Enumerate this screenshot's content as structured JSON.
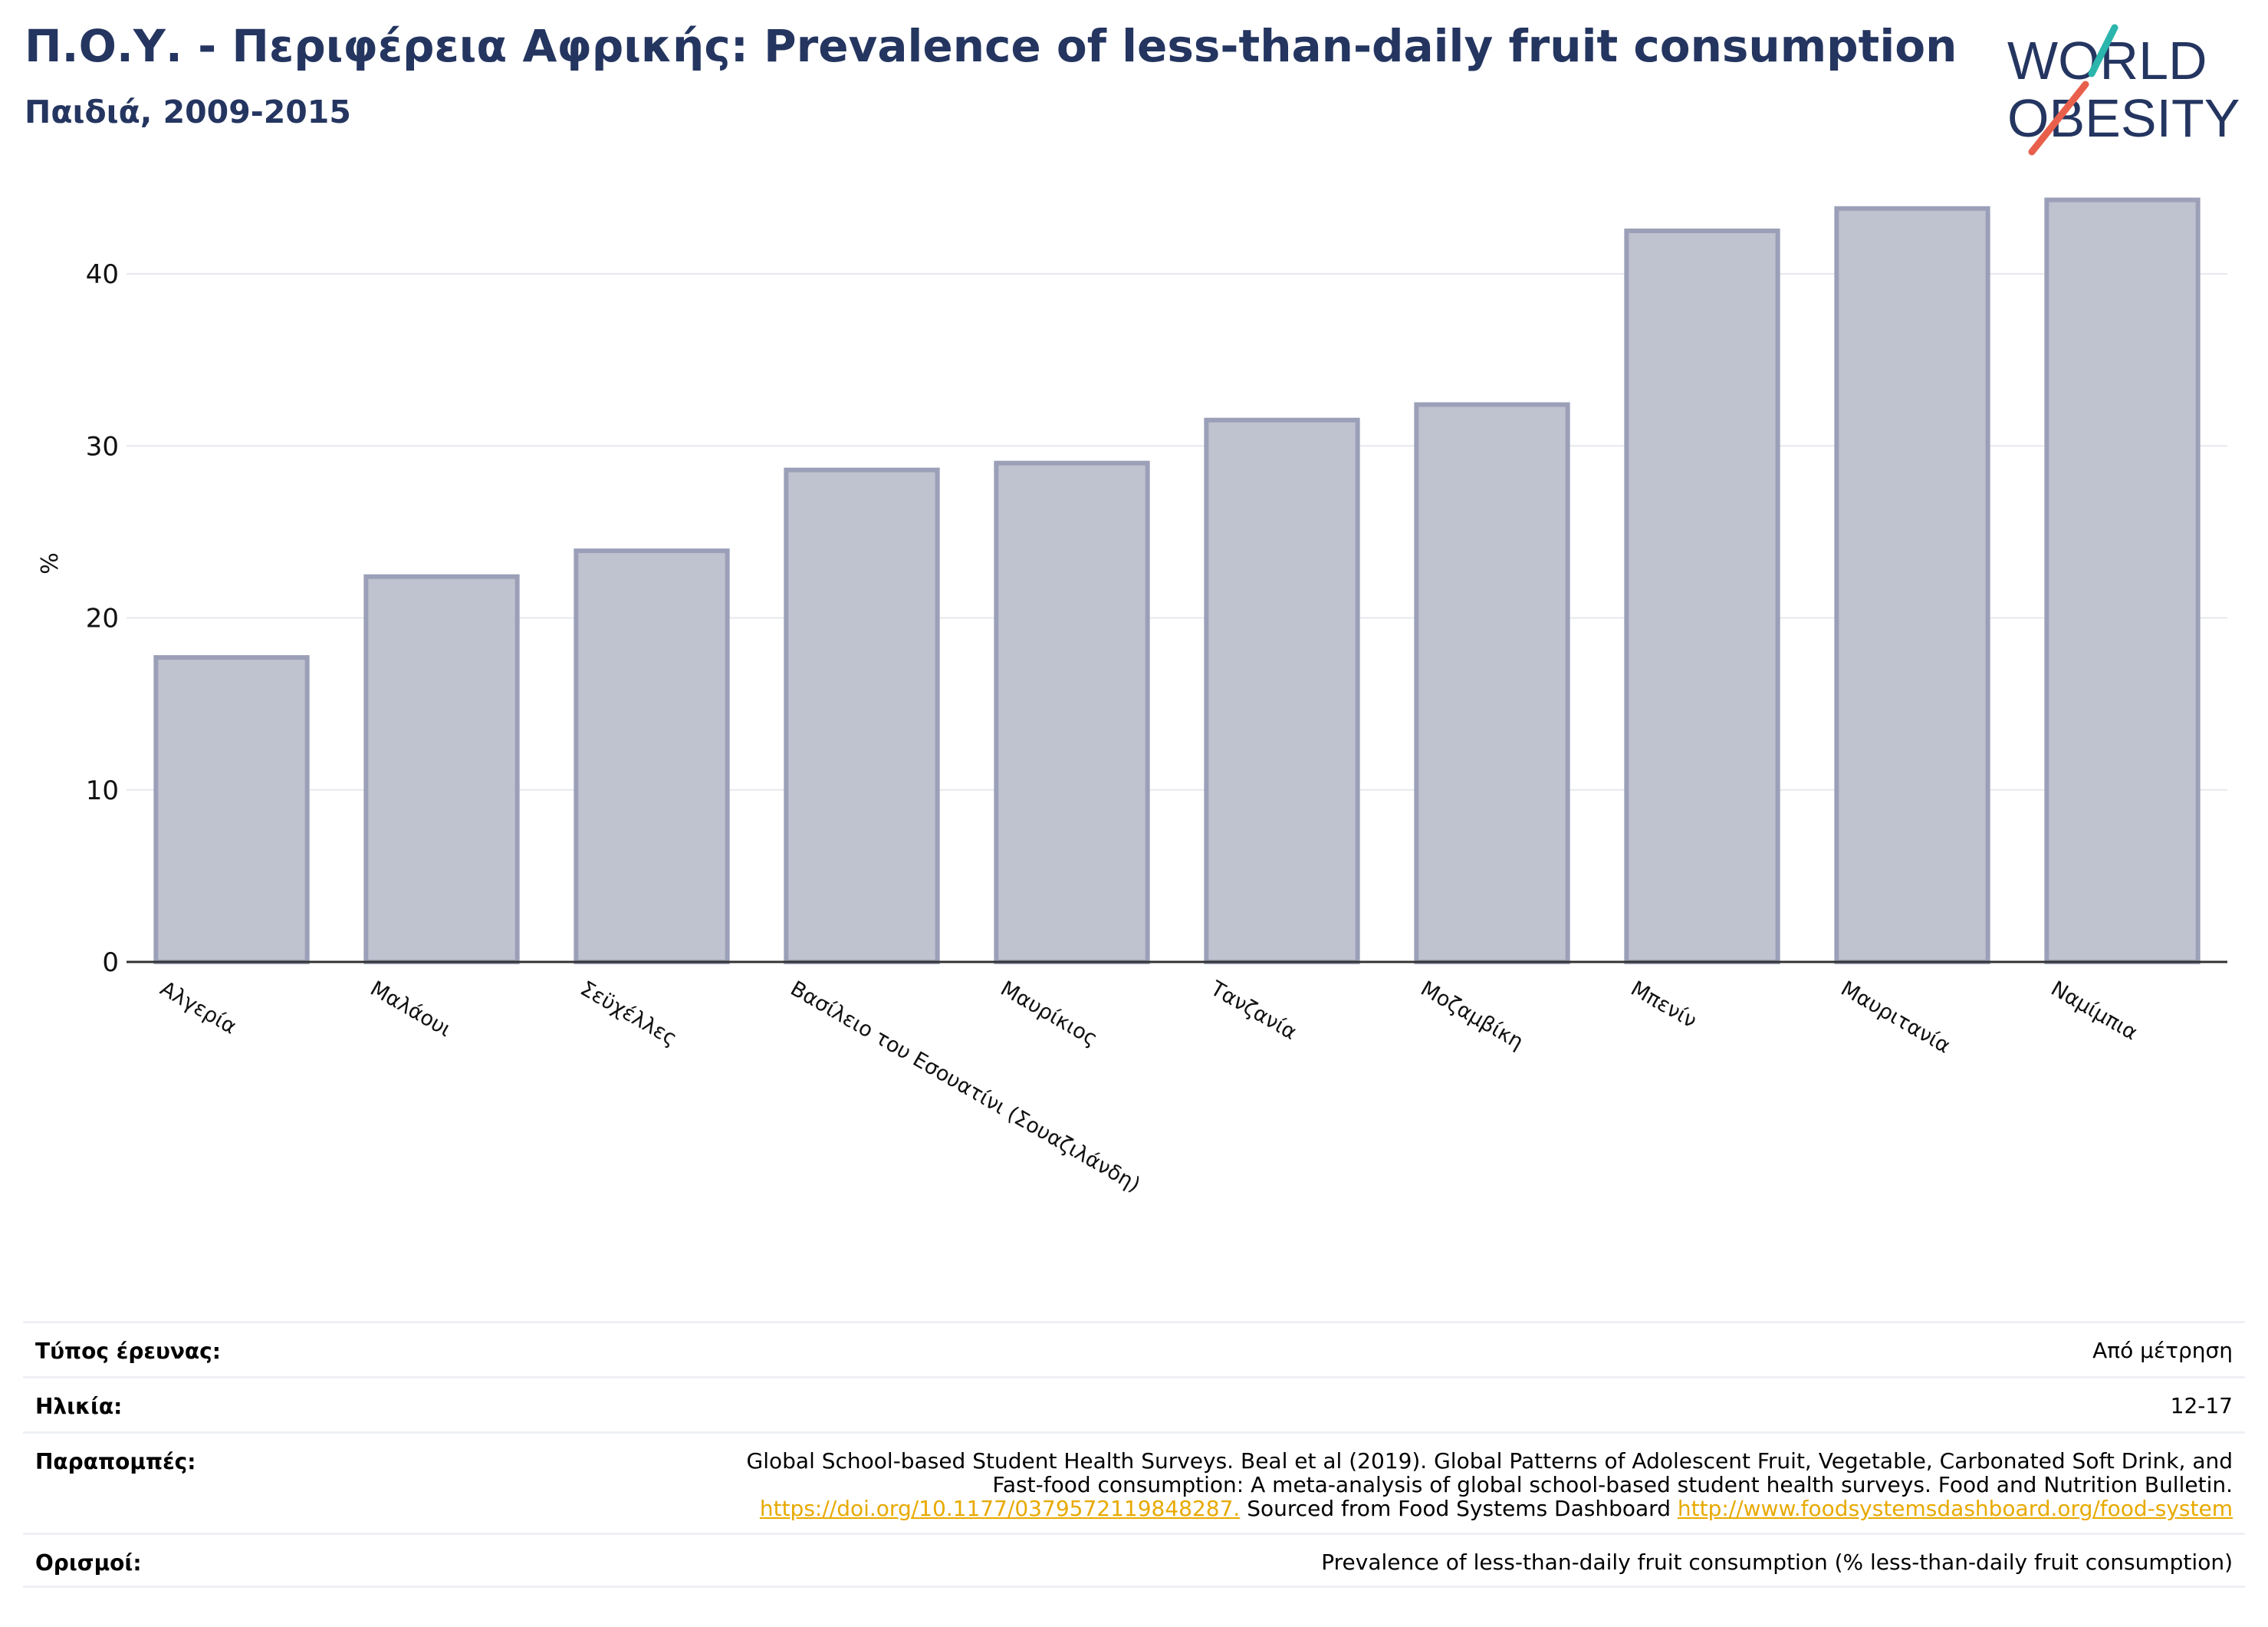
{
  "header": {
    "title": "Π.Ο.Υ. - Περιφέρεια Αφρικής: Prevalence of less-than-daily fruit consumption",
    "subtitle": "Παιδιά, 2009-2015"
  },
  "logo": {
    "line1": "WORLD",
    "line2": "OBESITY"
  },
  "colors": {
    "title": "#243560",
    "bar_fill": "#bfc2cf",
    "bar_stroke": "#9ba0b8",
    "link": "#e8a900",
    "logo_slash_teal": "#2bb5ac",
    "logo_slash_red": "#e8604c"
  },
  "chart_data": {
    "type": "bar",
    "ylabel": "%",
    "ylim": [
      0,
      45
    ],
    "yticks": [
      0,
      10,
      20,
      30,
      40
    ],
    "grid": true,
    "categories": [
      "Αλγερία",
      "Μαλάουι",
      "Σεϋχέλλες",
      "Βασίλειο του Εσουατίνι (Σουαζιλάνδη)",
      "Μαυρίκιος",
      "Τανζανία",
      "Μοζαμβίκη",
      "Μπενίν",
      "Μαυριτανία",
      "Ναμίμπια"
    ],
    "values": [
      17.7,
      22.4,
      23.9,
      28.6,
      29.0,
      31.5,
      32.4,
      42.5,
      43.8,
      44.3
    ]
  },
  "meta": {
    "survey_type": {
      "label": "Τύπος έρευνας:",
      "value": "Από μέτρηση"
    },
    "age": {
      "label": "Ηλικία:",
      "value": "12-17"
    },
    "references": {
      "label": "Παραπομπές:",
      "line1": "Global School-based Student Health Surveys. Beal et al (2019). Global Patterns of Adolescent Fruit, Vegetable, Carbonated Soft Drink, and",
      "line2": "Fast-food consumption: A meta-analysis of global school-based student health surveys. Food and Nutrition Bulletin.",
      "link1": "https://doi.org/10.1177/0379572119848287.",
      "middle": " Sourced from Food Systems Dashboard ",
      "link2": "http://www.foodsystemsdashboard.org/food-system"
    },
    "definitions": {
      "label": "Ορισμοί:",
      "value": "Prevalence of less-than-daily fruit consumption (% less-than-daily fruit consumption)"
    }
  }
}
